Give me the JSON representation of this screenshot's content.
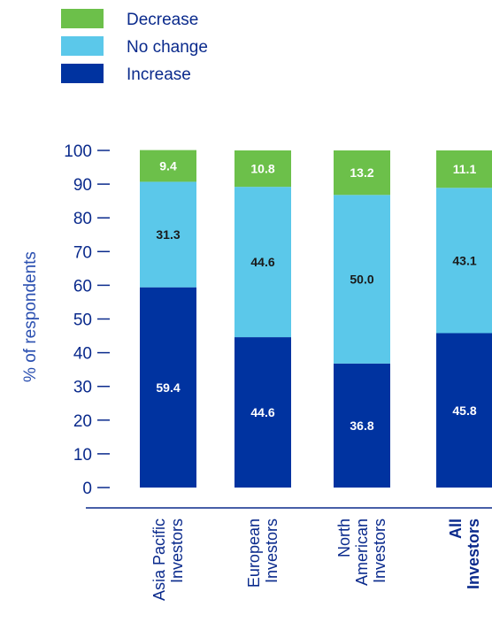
{
  "chart_data": {
    "type": "bar",
    "stacked": true,
    "categories": [
      [
        "Asia Pacific",
        "Investors"
      ],
      [
        "European",
        "Investors"
      ],
      [
        "North",
        "American",
        "Investors"
      ],
      [
        "All",
        "Investors"
      ]
    ],
    "categories_bold": [
      false,
      false,
      false,
      true
    ],
    "series": [
      {
        "name": "Increase",
        "color": "#0033a0",
        "values": [
          59.4,
          44.6,
          36.8,
          45.8
        ],
        "label_color": "#ffffff"
      },
      {
        "name": "No change",
        "color": "#5bc8ea",
        "values": [
          31.3,
          44.6,
          50.0,
          43.1
        ],
        "label_color": "#1a1a1a"
      },
      {
        "name": "Decrease",
        "color": "#6cc04a",
        "values": [
          9.4,
          10.8,
          13.2,
          11.1
        ],
        "label_color": "#ffffff"
      }
    ],
    "value_labels": [
      [
        "59.4",
        "44.6",
        "36.8",
        "45.8"
      ],
      [
        "31.3",
        "44.6",
        "50.0",
        "43.1"
      ],
      [
        "9.4",
        "10.8",
        "13.2",
        "11.1"
      ]
    ],
    "legend": {
      "placement": "top-left",
      "entries": [
        {
          "label": "Decrease",
          "color": "#6cc04a"
        },
        {
          "label": "No change",
          "color": "#5bc8ea"
        },
        {
          "label": "Increase",
          "color": "#0033a0"
        }
      ]
    },
    "title": "",
    "xlabel": "",
    "ylabel": "% of respondents",
    "ylim": [
      0,
      100
    ],
    "yticks": [
      "0",
      "10",
      "20",
      "30",
      "40",
      "50",
      "60",
      "70",
      "80",
      "90",
      "100"
    ],
    "grid": false
  }
}
